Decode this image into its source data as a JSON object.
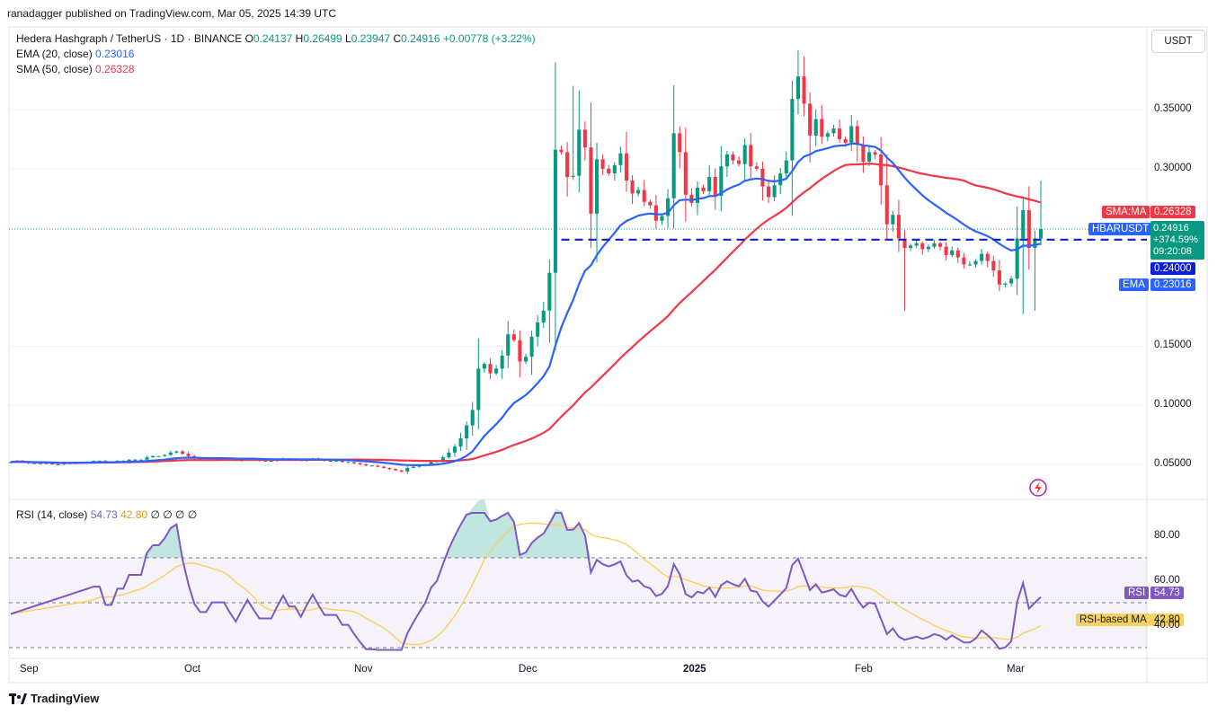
{
  "publisher": "ranadagger published on TradingView.com, Mar 05, 2025 14:39 UTC",
  "brand": "TradingView",
  "currency_button": "USDT",
  "legend": {
    "symbol": "Hedera Hashgraph / TetherUS · 1D · BINANCE",
    "open_label": "O",
    "open": "0.24137",
    "high_label": "H",
    "high": "0.26499",
    "low_label": "L",
    "low": "0.23947",
    "close_label": "C",
    "close": "0.24916",
    "change": "+0.00778 (+3.22%)",
    "ema_label": "EMA (20, close)",
    "ema_value": "0.23016",
    "sma_label": "SMA (50, close)",
    "sma_value": "0.26328",
    "rsi_label": "RSI (14, close)",
    "rsi_value": "54.73",
    "rsi_ma_value": "42.80",
    "rsi_extra": "∅ ∅ ∅ ∅"
  },
  "tags": {
    "sma_ma_label": "SMA:MA",
    "sma_ma_value": "0.26328",
    "symbol_label": "HBARUSDT",
    "price": "0.24916",
    "pct": "+374.59%",
    "countdown": "09:20:08",
    "support_value": "0.24000",
    "ema_label": "EMA",
    "ema_value": "0.23016",
    "rsi_label": "RSI",
    "rsi_value": "54.73",
    "rsi_ma_label": "RSI-based MA",
    "rsi_ma_value": "42.80"
  },
  "colors": {
    "up": "#089981",
    "down": "#f23645",
    "ema": "#2962ff",
    "sma": "#f23645",
    "rsi": "#7e57c2",
    "rsi_ma": "#f7d15f",
    "support": "#0b1fd6"
  },
  "chart_data": {
    "type": "candlestick",
    "y_axis": {
      "ticks": [
        "0.35000",
        "0.30000",
        "0.15000",
        "0.10000",
        "0.05000"
      ],
      "tick_values": [
        0.35,
        0.3,
        0.15,
        0.1,
        0.05
      ],
      "ylim": [
        0.02,
        0.41
      ]
    },
    "x_axis": {
      "ticks": [
        "Sep",
        "Oct",
        "Nov",
        "Dec",
        "2025",
        "Feb",
        "Mar"
      ]
    },
    "support_level": 0.24,
    "close": [
      0.052,
      0.053,
      0.052,
      0.051,
      0.051,
      0.051,
      0.051,
      0.05,
      0.05,
      0.051,
      0.051,
      0.052,
      0.052,
      0.052,
      0.053,
      0.053,
      0.052,
      0.052,
      0.053,
      0.053,
      0.054,
      0.054,
      0.054,
      0.056,
      0.057,
      0.057,
      0.058,
      0.06,
      0.061,
      0.059,
      0.057,
      0.055,
      0.054,
      0.054,
      0.055,
      0.055,
      0.055,
      0.054,
      0.053,
      0.054,
      0.055,
      0.054,
      0.053,
      0.053,
      0.053,
      0.054,
      0.055,
      0.054,
      0.054,
      0.053,
      0.054,
      0.055,
      0.054,
      0.053,
      0.053,
      0.053,
      0.052,
      0.052,
      0.051,
      0.05,
      0.049,
      0.049,
      0.048,
      0.047,
      0.046,
      0.045,
      0.044,
      0.047,
      0.048,
      0.049,
      0.05,
      0.052,
      0.053,
      0.056,
      0.06,
      0.065,
      0.072,
      0.083,
      0.096,
      0.131,
      0.135,
      0.127,
      0.131,
      0.142,
      0.16,
      0.155,
      0.137,
      0.141,
      0.158,
      0.17,
      0.18,
      0.212,
      0.316,
      0.314,
      0.293,
      0.294,
      0.333,
      0.318,
      0.262,
      0.308,
      0.3,
      0.296,
      0.303,
      0.313,
      0.29,
      0.279,
      0.282,
      0.272,
      0.269,
      0.256,
      0.26,
      0.275,
      0.33,
      0.314,
      0.278,
      0.271,
      0.284,
      0.281,
      0.293,
      0.277,
      0.302,
      0.312,
      0.307,
      0.304,
      0.32,
      0.302,
      0.3,
      0.285,
      0.276,
      0.286,
      0.296,
      0.307,
      0.359,
      0.378,
      0.355,
      0.328,
      0.342,
      0.327,
      0.33,
      0.334,
      0.325,
      0.322,
      0.336,
      0.32,
      0.306,
      0.314,
      0.312,
      0.286,
      0.253,
      0.261,
      0.241,
      0.233,
      0.235,
      0.237,
      0.232,
      0.234,
      0.237,
      0.234,
      0.227,
      0.231,
      0.225,
      0.219,
      0.219,
      0.222,
      0.228,
      0.222,
      0.214,
      0.202,
      0.203,
      0.207,
      0.241,
      0.265,
      0.233,
      0.241,
      0.249
    ],
    "series": [
      {
        "name": "EMA (20, close)",
        "last": 0.23016
      },
      {
        "name": "SMA (50, close)",
        "last": 0.26328
      }
    ],
    "rsi": {
      "ylim": [
        30,
        90
      ],
      "ticks": [
        "80.00",
        "60.00",
        "40.00"
      ],
      "tick_values": [
        80,
        60,
        40
      ],
      "bands": [
        70,
        50,
        30
      ],
      "last_rsi": 54.73,
      "last_ma": 42.8
    }
  }
}
